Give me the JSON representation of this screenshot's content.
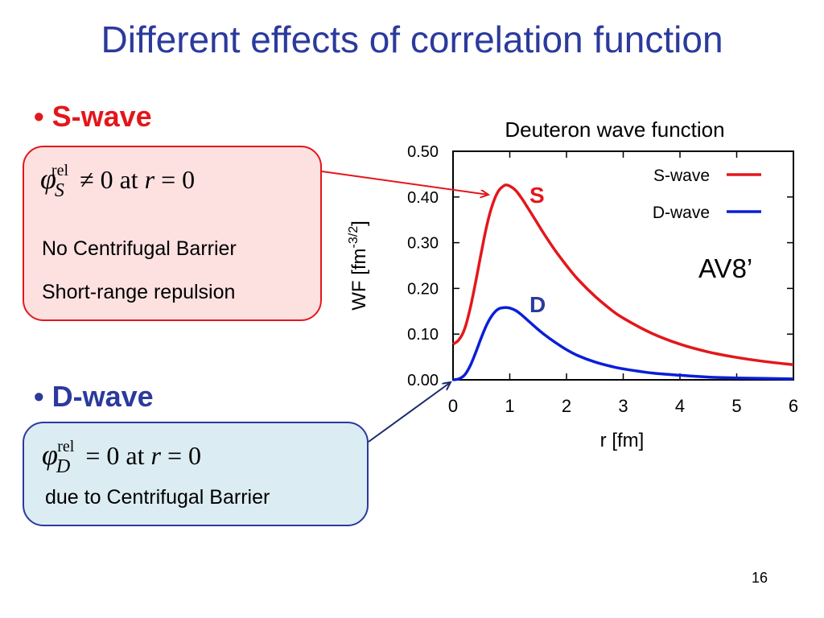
{
  "slide": {
    "title": "Different effects of correlation function",
    "page_number": "16"
  },
  "s_wave": {
    "bullet": "•",
    "heading": "S-wave",
    "formula": {
      "symbol": "φ",
      "subscript": "S",
      "superscript": "rel",
      "relation": "≠ 0 at ",
      "variable": "r",
      "rhs": " = 0"
    },
    "lines": [
      "No Centrifugal Barrier",
      "Short-range repulsion"
    ]
  },
  "d_wave": {
    "bullet": "•",
    "heading": "D-wave",
    "formula": {
      "symbol": "φ",
      "subscript": "D",
      "superscript": "rel",
      "relation": "= 0 at ",
      "variable": "r",
      "rhs": " = 0"
    },
    "lines": [
      "due to Centrifugal Barrier"
    ]
  },
  "colors": {
    "title": "#2b3a9c",
    "s_wave": "#e3171b",
    "d_wave": "#0a1fd8",
    "s_box_fill": "#fde1e1",
    "d_box_fill": "#dcecf3",
    "d_box_border": "#2b3a9c"
  },
  "chart_data": {
    "type": "line",
    "title": "Deuteron wave function",
    "xlabel": "r [fm]",
    "ylabel_main": "WF [fm",
    "ylabel_sup": "-3/2",
    "ylabel_end": "]",
    "xlim": [
      0,
      6
    ],
    "ylim": [
      0,
      0.5
    ],
    "x_ticks": [
      0,
      1,
      2,
      3,
      4,
      5,
      6
    ],
    "x_tick_labels": [
      "0",
      "1",
      "2",
      "3",
      "4",
      "5",
      "6"
    ],
    "y_ticks": [
      0,
      0.1,
      0.2,
      0.3,
      0.4,
      0.5
    ],
    "y_tick_labels": [
      "0.00",
      "0.10",
      "0.20",
      "0.30",
      "0.40",
      "0.50"
    ],
    "legend_position": "top-right",
    "grid": false,
    "annotation": "AV8’",
    "series": [
      {
        "name": "S-wave",
        "label": "S",
        "color": "#e3171b",
        "x": [
          0,
          0.1,
          0.2,
          0.3,
          0.4,
          0.5,
          0.6,
          0.7,
          0.8,
          0.9,
          0.95,
          1.0,
          1.1,
          1.2,
          1.3,
          1.4,
          1.5,
          1.6,
          1.8,
          2.0,
          2.2,
          2.5,
          2.8,
          3.0,
          3.5,
          4.0,
          4.5,
          5.0,
          5.5,
          6.0
        ],
        "y": [
          0.078,
          0.087,
          0.11,
          0.155,
          0.215,
          0.28,
          0.34,
          0.385,
          0.413,
          0.425,
          0.426,
          0.424,
          0.415,
          0.399,
          0.38,
          0.36,
          0.34,
          0.32,
          0.283,
          0.25,
          0.22,
          0.183,
          0.152,
          0.135,
          0.102,
          0.078,
          0.061,
          0.049,
          0.04,
          0.033
        ]
      },
      {
        "name": "D-wave",
        "label": "D",
        "color": "#0a1fd8",
        "x": [
          0,
          0.1,
          0.2,
          0.3,
          0.4,
          0.5,
          0.6,
          0.7,
          0.8,
          0.9,
          0.95,
          1.0,
          1.1,
          1.2,
          1.3,
          1.4,
          1.5,
          1.6,
          1.8,
          2.0,
          2.2,
          2.5,
          2.8,
          3.0,
          3.5,
          4.0,
          4.5,
          5.0,
          5.5,
          6.0
        ],
        "y": [
          0,
          0.002,
          0.01,
          0.03,
          0.06,
          0.093,
          0.122,
          0.143,
          0.155,
          0.158,
          0.158,
          0.157,
          0.152,
          0.143,
          0.132,
          0.121,
          0.11,
          0.1,
          0.082,
          0.066,
          0.053,
          0.039,
          0.029,
          0.024,
          0.015,
          0.01,
          0.006,
          0.004,
          0.003,
          0.002
        ]
      }
    ]
  }
}
